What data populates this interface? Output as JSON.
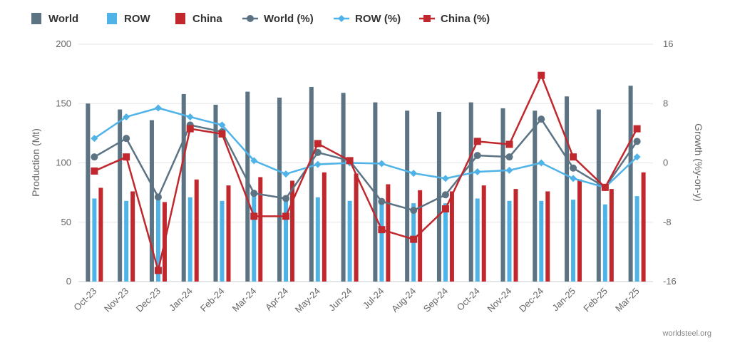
{
  "chart_data": {
    "type": "bar+line",
    "categories": [
      "Oct-23",
      "Nov-23",
      "Dec-23",
      "Jan-24",
      "Feb-24",
      "Mar-24",
      "Apr-24",
      "May-24",
      "Jun-24",
      "Jul-24",
      "Aug-24",
      "Sep-24",
      "Oct-24",
      "Nov-24",
      "Dec-24",
      "Jan-25",
      "Feb-25",
      "Mar-25"
    ],
    "bar_series": [
      {
        "name": "World",
        "color": "#5b7383",
        "axis": "left",
        "values": [
          150,
          145,
          136,
          158,
          149,
          160,
          155,
          164,
          159,
          151,
          144,
          143,
          151,
          146,
          144,
          156,
          145,
          165
        ]
      },
      {
        "name": "ROW",
        "color": "#4fb3e8",
        "axis": "left",
        "values": [
          70,
          68,
          70,
          71,
          68,
          73,
          70,
          71,
          68,
          70,
          66,
          66,
          70,
          68,
          68,
          69,
          65,
          72
        ]
      },
      {
        "name": "China",
        "color": "#c0282e",
        "axis": "left",
        "values": [
          79,
          76,
          67,
          86,
          81,
          88,
          85,
          92,
          91,
          82,
          77,
          76,
          81,
          78,
          76,
          86,
          78,
          92
        ]
      }
    ],
    "line_series": [
      {
        "name": "World (%)",
        "color": "#5b7383",
        "marker": "circle",
        "axis": "right",
        "values": [
          0.8,
          3.3,
          -4.6,
          5.1,
          4.2,
          -4.1,
          -4.8,
          1.4,
          0.3,
          -5.2,
          -6.4,
          -4.3,
          1.0,
          0.8,
          5.9,
          -0.7,
          -3.3,
          2.9
        ]
      },
      {
        "name": "ROW (%)",
        "color": "#4fb3e8",
        "marker": "diamond",
        "axis": "right",
        "values": [
          3.3,
          6.2,
          7.4,
          6.2,
          5.1,
          0.3,
          -1.5,
          -0.2,
          0.0,
          -0.1,
          -1.4,
          -2.1,
          -1.2,
          -1.0,
          0.0,
          -2.1,
          -3.3,
          0.8
        ]
      },
      {
        "name": "China (%)",
        "color": "#c0282e",
        "marker": "square",
        "axis": "right",
        "values": [
          -1.1,
          0.8,
          -14.5,
          4.6,
          3.9,
          -7.2,
          -7.2,
          2.6,
          0.3,
          -9.0,
          -10.3,
          -6.2,
          2.9,
          2.5,
          11.8,
          0.8,
          -3.3,
          4.6
        ]
      }
    ],
    "ylabel": "Production (Mt)",
    "ylabel_right": "Growth (%y-on-y)",
    "ylim": [
      0,
      200
    ],
    "ylim_right": [
      -16,
      16
    ],
    "yticks": [
      0,
      50,
      100,
      150,
      200
    ],
    "yticks_right": [
      -16,
      -8,
      0,
      8,
      16
    ],
    "legend": [
      "World",
      "ROW",
      "China",
      "World (%)",
      "ROW (%)",
      "China (%)"
    ],
    "legend_position": "top-left",
    "grid": true
  },
  "credit": "worldsteel.org"
}
